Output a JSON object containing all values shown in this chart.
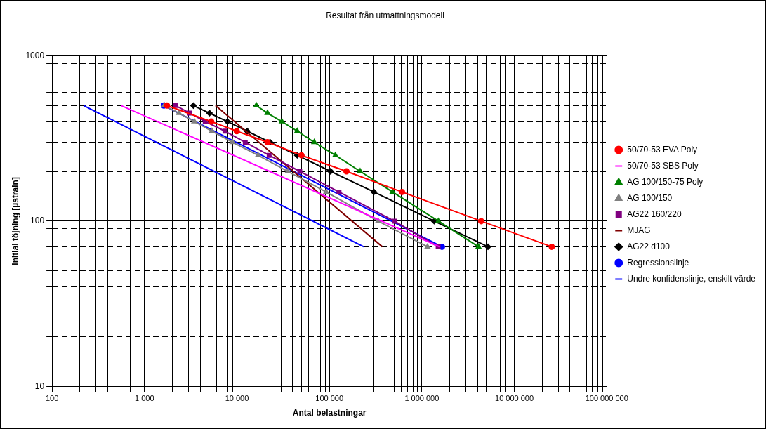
{
  "chart_data": {
    "type": "line",
    "title": "Resultat från utmattningsmodell",
    "xlabel": "Antal belastningar",
    "ylabel": "Initial töjning [µstrain]",
    "log": "xy",
    "grid": true,
    "legend": "right",
    "line_style": "solid",
    "xlim": [
      100,
      100000000
    ],
    "ylim": [
      10,
      1000
    ],
    "xticks": [
      100,
      {
        "value": 200,
        "label": null
      },
      {
        "value": 300,
        "label": null
      },
      {
        "value": 400,
        "label": null
      },
      {
        "value": 500,
        "label": null
      },
      {
        "value": 600,
        "label": null
      },
      {
        "value": 700,
        "label": null
      },
      {
        "value": 800,
        "label": null
      },
      {
        "value": 900,
        "label": null
      },
      {
        "value": 1000,
        "label": "1 000"
      },
      {
        "value": 2000,
        "label": null
      },
      {
        "value": 3000,
        "label": null
      },
      {
        "value": 4000,
        "label": null
      },
      {
        "value": 5000,
        "label": null
      },
      {
        "value": 6000,
        "label": null
      },
      {
        "value": 7000,
        "label": null
      },
      {
        "value": 8000,
        "label": null
      },
      {
        "value": 9000,
        "label": null
      },
      {
        "value": 10000,
        "label": "10 000"
      },
      {
        "value": 20000,
        "label": null
      },
      {
        "value": 30000,
        "label": null
      },
      {
        "value": 40000,
        "label": null
      },
      {
        "value": 50000,
        "label": null
      },
      {
        "value": 60000,
        "label": null
      },
      {
        "value": 70000,
        "label": null
      },
      {
        "value": 80000,
        "label": null
      },
      {
        "value": 90000,
        "label": null
      },
      {
        "value": 100000,
        "label": "100 000"
      },
      {
        "value": 200000,
        "label": null
      },
      {
        "value": 300000,
        "label": null
      },
      {
        "value": 400000,
        "label": null
      },
      {
        "value": 500000,
        "label": null
      },
      {
        "value": 600000,
        "label": null
      },
      {
        "value": 700000,
        "label": null
      },
      {
        "value": 800000,
        "label": null
      },
      {
        "value": 900000,
        "label": null
      },
      {
        "value": 1000000,
        "label": "1 000 000"
      },
      {
        "value": 2000000,
        "label": null
      },
      {
        "value": 3000000,
        "label": null
      },
      {
        "value": 4000000,
        "label": null
      },
      {
        "value": 5000000,
        "label": null
      },
      {
        "value": 6000000,
        "label": null
      },
      {
        "value": 7000000,
        "label": null
      },
      {
        "value": 8000000,
        "label": null
      },
      {
        "value": 9000000,
        "label": null
      },
      {
        "value": 10000000,
        "label": "10 000 000"
      },
      {
        "value": 20000000,
        "label": null
      },
      {
        "value": 30000000,
        "label": null
      },
      {
        "value": 40000000,
        "label": null
      },
      {
        "value": 50000000,
        "label": null
      },
      {
        "value": 60000000,
        "label": null
      },
      {
        "value": 70000000,
        "label": null
      },
      {
        "value": 80000000,
        "label": null
      },
      {
        "value": 90000000,
        "label": null
      },
      {
        "value": 100000000,
        "label": "100 000 000"
      }
    ],
    "yticks": [
      10,
      {
        "value": 20,
        "label": null
      },
      {
        "value": 30,
        "label": null
      },
      {
        "value": 40,
        "label": null
      },
      {
        "value": 50,
        "label": null
      },
      {
        "value": 60,
        "label": null
      },
      {
        "value": 70,
        "label": null
      },
      {
        "value": 80,
        "label": null
      },
      {
        "value": 90,
        "label": null
      },
      100,
      {
        "value": 200,
        "label": null
      },
      {
        "value": 300,
        "label": null
      },
      {
        "value": 400,
        "label": null
      },
      {
        "value": 500,
        "label": null
      },
      {
        "value": 600,
        "label": null
      },
      {
        "value": 700,
        "label": null
      },
      {
        "value": 800,
        "label": null
      },
      {
        "value": 900,
        "label": null
      },
      1000
    ],
    "series": [
      {
        "name": "50/70-53 EVA Poly",
        "color": "#ff0000",
        "marker": "circle",
        "x": [
          1750,
          5270,
          9950,
          21400,
          49900,
          153000,
          610000,
          4380000,
          25400000
        ],
        "values": [
          500,
          400,
          350,
          300,
          250,
          200,
          150,
          100,
          70
        ]
      },
      {
        "name": "50/70-53 SBS Poly",
        "color": "#ff00ff",
        "marker": "none",
        "x": [
          560,
          1550000
        ],
        "values": [
          500,
          70
        ]
      },
      {
        "name": "AG 100/150-75 Poly",
        "color": "#008000",
        "marker": "triangle",
        "x": [
          16200,
          21400,
          30600,
          44900,
          68600,
          116000,
          215000,
          482000,
          1510000,
          4100000
        ],
        "values": [
          500,
          450,
          400,
          350,
          300,
          250,
          200,
          150,
          100,
          70
        ]
      },
      {
        "name": "AG 100/150",
        "color": "#808080",
        "marker": "triangle",
        "x": [
          1640,
          2360,
          3460,
          5370,
          8960,
          16900,
          35500,
          92300,
          337000,
          1150000
        ],
        "values": [
          500,
          450,
          400,
          350,
          300,
          250,
          200,
          150,
          100,
          70
        ]
      },
      {
        "name": "AG22 160/220",
        "color": "#800080",
        "marker": "square",
        "x": [
          2160,
          3090,
          4540,
          7420,
          12300,
          22300,
          47800,
          127000,
          504000,
          1500000
        ],
        "values": [
          500,
          450,
          400,
          350,
          300,
          250,
          200,
          150,
          100,
          70
        ]
      },
      {
        "name": "MJAG",
        "color": "#800000",
        "marker": "none",
        "x": [
          5860,
          374000
        ],
        "values": [
          500,
          70
        ]
      },
      {
        "name": "AG22 d100",
        "color": "#000000",
        "marker": "diamond",
        "x": [
          3380,
          5050,
          7880,
          12900,
          22800,
          44900,
          103000,
          303000,
          1360000,
          5190000
        ],
        "values": [
          500,
          450,
          400,
          350,
          300,
          250,
          200,
          150,
          100,
          70
        ]
      },
      {
        "name": "Regressionslinje",
        "color": "#0000ff",
        "marker": "circle",
        "x": [
          1620,
          1650000
        ],
        "values": [
          500,
          70
        ]
      },
      {
        "name": "Undre konfidenslinje, enskilt värde",
        "color": "#0000ff",
        "marker": "none",
        "x": [
          220,
          235000
        ],
        "values": [
          500,
          70
        ]
      }
    ]
  }
}
